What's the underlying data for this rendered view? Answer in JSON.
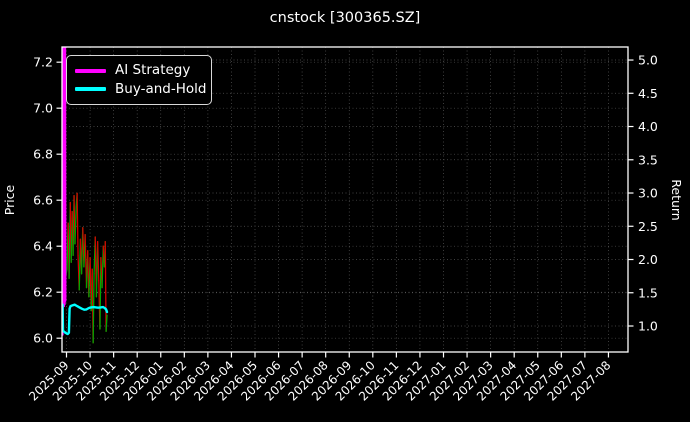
{
  "window": {
    "background": "#000000",
    "text_color": "#ffffff"
  },
  "chart_data": {
    "type": "line",
    "title": "cnstock [300365.SZ]",
    "grid": true,
    "grid_style": "dotted",
    "price_axis": {
      "label": "Price",
      "side": "left",
      "ticks": [
        7.2,
        7.0,
        6.8,
        6.6,
        6.4,
        6.2,
        6.0
      ],
      "ylim": [
        5.94,
        7.266
      ]
    },
    "return_axis": {
      "label": "Return",
      "side": "right",
      "ticks": [
        5.0,
        4.5,
        4.0,
        3.5,
        3.0,
        2.5,
        2.0,
        1.5,
        1.0
      ],
      "ylim": [
        0.609,
        5.196
      ]
    },
    "x_axis": {
      "unit": "months from 2025-09-01",
      "xlim_months": [
        -0.191,
        23.83
      ],
      "tick_labels": [
        "2025-09",
        "2025-10",
        "2025-11",
        "2025-12",
        "2026-01",
        "2026-02",
        "2026-03",
        "2026-04",
        "2026-05",
        "2026-06",
        "2026-07",
        "2026-08",
        "2026-09",
        "2026-10",
        "2026-11",
        "2026-12",
        "2027-01",
        "2027-02",
        "2027-03",
        "2027-04",
        "2027-05",
        "2027-06",
        "2027-07",
        "2027-08"
      ]
    },
    "legend": {
      "position": "upper-left",
      "entries": [
        {
          "label": "AI Strategy",
          "color": "#ff00ff"
        },
        {
          "label": "Buy-and-Hold",
          "color": "#00ffff"
        }
      ]
    },
    "colors": {
      "price_up": "#00a800",
      "price_down": "#d40000",
      "grid": "#555555",
      "spine": "#ffffff"
    },
    "series": [
      {
        "name": "Price",
        "axis": "price",
        "style": "updown",
        "width": 1.3,
        "points": [
          [
            -0.19,
            6.04
          ],
          [
            -0.175,
            7.25
          ],
          [
            -0.16,
            6.35
          ],
          [
            -0.145,
            6.95
          ],
          [
            -0.13,
            6.28
          ],
          [
            -0.115,
            6.62
          ],
          [
            -0.1,
            6.3
          ],
          [
            -0.08,
            6.55
          ],
          [
            -0.06,
            6.25
          ],
          [
            0.02,
            6.3
          ],
          [
            0.07,
            6.5
          ],
          [
            0.11,
            6.26
          ],
          [
            0.16,
            6.59
          ],
          [
            0.2,
            6.33
          ],
          [
            0.24,
            6.55
          ],
          [
            0.28,
            6.36
          ],
          [
            0.32,
            6.62
          ],
          [
            0.36,
            6.41
          ],
          [
            0.41,
            6.57
          ],
          [
            0.45,
            6.63
          ],
          [
            0.49,
            6.36
          ],
          [
            0.54,
            6.21
          ],
          [
            0.59,
            6.43
          ],
          [
            0.64,
            6.28
          ],
          [
            0.69,
            6.48
          ],
          [
            0.74,
            6.31
          ],
          [
            0.79,
            6.45
          ],
          [
            0.85,
            6.22
          ],
          [
            0.9,
            6.38
          ],
          [
            0.95,
            6.18
          ],
          [
            1.0,
            6.35
          ],
          [
            1.05,
            6.12
          ],
          [
            1.09,
            6.3
          ],
          [
            1.13,
            5.98
          ],
          [
            1.17,
            6.28
          ],
          [
            1.22,
            6.44
          ],
          [
            1.27,
            6.18
          ],
          [
            1.32,
            6.42
          ],
          [
            1.37,
            6.25
          ],
          [
            1.42,
            6.04
          ],
          [
            1.46,
            6.35
          ],
          [
            1.51,
            6.22
          ],
          [
            1.56,
            6.4
          ],
          [
            1.61,
            6.31
          ],
          [
            1.645,
            6.42
          ],
          [
            1.68,
            6.03
          ],
          [
            1.72,
            6.1
          ]
        ]
      },
      {
        "name": "AI Strategy",
        "axis": "return",
        "style": "line",
        "color": "#ff00ff",
        "width": 2.3,
        "points": [
          [
            -0.19,
            1.05
          ],
          [
            -0.185,
            5.3
          ],
          [
            -0.17,
            0.87
          ],
          [
            -0.155,
            5.3
          ],
          [
            -0.14,
            1.33
          ],
          [
            -0.125,
            5.3
          ],
          [
            -0.11,
            1.3
          ],
          [
            -0.095,
            5.3
          ],
          [
            -0.08,
            1.33
          ],
          [
            -0.065,
            5.3
          ],
          [
            -0.05,
            1.38
          ]
        ]
      },
      {
        "name": "Buy-and-Hold",
        "axis": "return",
        "style": "line",
        "color": "#00ffff",
        "width": 2.4,
        "points": [
          [
            -0.19,
            1.28
          ],
          [
            -0.165,
            1.32
          ],
          [
            -0.15,
            0.93
          ],
          [
            -0.05,
            0.9
          ],
          [
            0.05,
            0.88
          ],
          [
            0.1,
            0.9
          ],
          [
            0.13,
            1.26
          ],
          [
            0.17,
            1.3
          ],
          [
            0.25,
            1.31
          ],
          [
            0.35,
            1.32
          ],
          [
            0.45,
            1.3
          ],
          [
            0.55,
            1.28
          ],
          [
            0.65,
            1.26
          ],
          [
            0.75,
            1.245
          ],
          [
            0.85,
            1.25
          ],
          [
            0.95,
            1.27
          ],
          [
            1.05,
            1.28
          ],
          [
            1.15,
            1.285
          ],
          [
            1.25,
            1.28
          ],
          [
            1.35,
            1.275
          ],
          [
            1.45,
            1.28
          ],
          [
            1.55,
            1.285
          ],
          [
            1.62,
            1.27
          ],
          [
            1.68,
            1.25
          ],
          [
            1.72,
            1.21
          ]
        ]
      }
    ]
  }
}
